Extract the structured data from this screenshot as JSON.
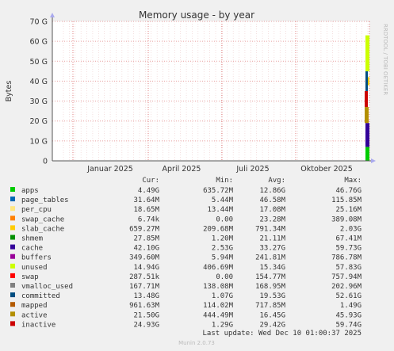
{
  "chart_data": {
    "type": "area",
    "title": "Memory usage - by year",
    "ylabel": "Bytes",
    "side_label": "RRDTOOL / TOBI OETIKER",
    "ylim": [
      0,
      70
    ],
    "y_unit": "G",
    "y_ticks": [
      "0",
      "10 G",
      "20 G",
      "30 G",
      "40 G",
      "50 G",
      "60 G",
      "70 G"
    ],
    "x_ticks": [
      "Januar 2025",
      "April 2025",
      "Juli 2025",
      "Oktober 2025"
    ],
    "grid": true,
    "table_headers": {
      "cur": "Cur:",
      "min": "Min:",
      "avg": "Avg:",
      "max": "Max:"
    },
    "series": [
      {
        "name": "apps",
        "color": "#00cc00",
        "cur": "4.49G",
        "min": "635.72M",
        "avg": "12.86G",
        "max": "46.76G"
      },
      {
        "name": "page_tables",
        "color": "#0066b3",
        "cur": "31.64M",
        "min": "5.44M",
        "avg": "46.58M",
        "max": "115.85M"
      },
      {
        "name": "per_cpu",
        "color": "#ffe680",
        "cur": "18.65M",
        "min": "13.44M",
        "avg": "17.08M",
        "max": "25.16M"
      },
      {
        "name": "swap_cache",
        "color": "#ff8000",
        "cur": "6.74k",
        "min": "0.00",
        "avg": "23.28M",
        "max": "389.08M"
      },
      {
        "name": "slab_cache",
        "color": "#ffcc00",
        "cur": "659.27M",
        "min": "209.68M",
        "avg": "791.34M",
        "max": "2.03G"
      },
      {
        "name": "shmem",
        "color": "#008f00",
        "cur": "27.85M",
        "min": "1.20M",
        "avg": "21.11M",
        "max": "67.41M"
      },
      {
        "name": "cache",
        "color": "#330099",
        "cur": "42.10G",
        "min": "2.53G",
        "avg": "33.27G",
        "max": "59.73G"
      },
      {
        "name": "buffers",
        "color": "#990099",
        "cur": "349.60M",
        "min": "5.94M",
        "avg": "241.81M",
        "max": "786.78M"
      },
      {
        "name": "unused",
        "color": "#ccff00",
        "cur": "14.94G",
        "min": "406.69M",
        "avg": "15.34G",
        "max": "57.83G"
      },
      {
        "name": "swap",
        "color": "#ff0000",
        "cur": "287.51k",
        "min": "0.00",
        "avg": "154.77M",
        "max": "757.94M"
      },
      {
        "name": "vmalloc_used",
        "color": "#808080",
        "cur": "167.71M",
        "min": "138.08M",
        "avg": "168.95M",
        "max": "202.96M"
      },
      {
        "name": "committed",
        "color": "#004d80",
        "cur": "13.48G",
        "min": "1.07G",
        "avg": "19.53G",
        "max": "52.61G"
      },
      {
        "name": "mapped",
        "color": "#b35a00",
        "cur": "961.63M",
        "min": "114.02M",
        "avg": "717.85M",
        "max": "1.49G"
      },
      {
        "name": "active",
        "color": "#b38f00",
        "cur": "21.50G",
        "min": "444.49M",
        "avg": "16.45G",
        "max": "45.93G"
      },
      {
        "name": "inactive",
        "color": "#cc0000",
        "cur": "24.93G",
        "min": "1.29G",
        "avg": "29.42G",
        "max": "59.74G"
      }
    ],
    "last_update": "Last update: Wed Dec 10 01:00:37 2025",
    "footer": "Munin 2.0.73"
  }
}
